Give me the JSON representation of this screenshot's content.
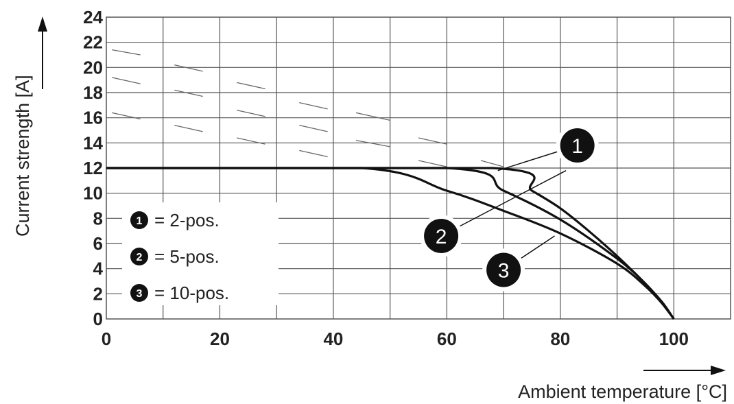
{
  "chart_data": {
    "type": "line",
    "xlabel": "Ambient temperature [°C]",
    "ylabel": "Current strength [A]",
    "xlim": [
      0,
      110
    ],
    "ylim": [
      0,
      24
    ],
    "xticks": [
      "0",
      "20",
      "40",
      "60",
      "80",
      "100"
    ],
    "yticks": [
      "0",
      "2",
      "4",
      "6",
      "8",
      "10",
      "12",
      "14",
      "16",
      "18",
      "20",
      "22",
      "24"
    ],
    "grid": true,
    "legend_position": "bottom-left",
    "series": [
      {
        "name": "2-pos.",
        "badge": "1",
        "x": [
          0,
          68,
          75,
          80,
          85,
          90,
          95,
          98,
          100
        ],
        "y": [
          12,
          12,
          10.2,
          8.8,
          7.0,
          5.0,
          2.8,
          1.3,
          0
        ]
      },
      {
        "name": "5-pos.",
        "badge": "2",
        "x": [
          0,
          60,
          70,
          80,
          90,
          95,
          98,
          100
        ],
        "y": [
          12,
          12,
          10.2,
          7.9,
          4.8,
          2.8,
          1.2,
          0
        ]
      },
      {
        "name": "10-pos.",
        "badge": "3",
        "x": [
          0,
          45,
          60,
          70,
          80,
          90,
          95,
          98,
          100
        ],
        "y": [
          12,
          12,
          10.2,
          8.6,
          6.8,
          4.4,
          2.6,
          1.2,
          0
        ]
      }
    ],
    "legend": [
      {
        "badge": "1",
        "text": "= 2-pos."
      },
      {
        "badge": "2",
        "text": "= 5-pos."
      },
      {
        "badge": "3",
        "text": "= 10-pos."
      }
    ],
    "callouts": [
      {
        "badge": "1",
        "x": 83,
        "y": 13.8,
        "target_x": 69,
        "target_y": 11.8
      },
      {
        "badge": "2",
        "x": 59,
        "y": 6.6,
        "target_x": 81,
        "target_y": 11.8
      },
      {
        "badge": "3",
        "x": 70,
        "y": 3.9,
        "target_x": 79,
        "target_y": 6.6
      }
    ],
    "colors": {
      "line": "#111111",
      "grid": "#555555",
      "badge_fill": "#111111",
      "watermark": "#666666"
    }
  }
}
